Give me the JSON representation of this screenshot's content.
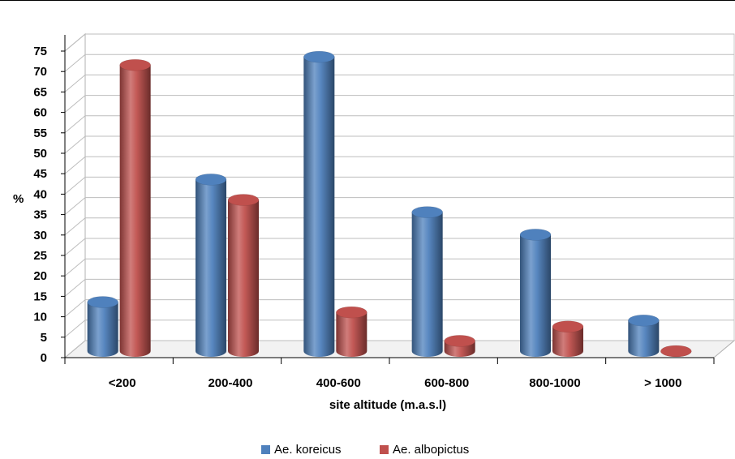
{
  "chart_data": {
    "type": "bar",
    "categories": [
      "<200",
      "200-400",
      "400-600",
      "600-800",
      "800-1000",
      "> 1000"
    ],
    "series": [
      {
        "name": "Ae. koreicus",
        "values": [
          12,
          42,
          72,
          34,
          28.5,
          7.5
        ],
        "color": "#4F81BD"
      },
      {
        "name": "Ae. albopictus",
        "values": [
          70,
          37,
          9.5,
          2.5,
          6,
          0
        ],
        "color": "#C0504D"
      }
    ],
    "yticks": [
      0,
      5,
      10,
      15,
      20,
      25,
      30,
      35,
      40,
      45,
      50,
      55,
      60,
      65,
      70,
      75
    ],
    "ylim": [
      0,
      75
    ],
    "xlabel": "site altitude (m.a.s.l)",
    "ylabel": "%",
    "grid": true,
    "legend": "bottom",
    "style": "3d-cylinder"
  }
}
